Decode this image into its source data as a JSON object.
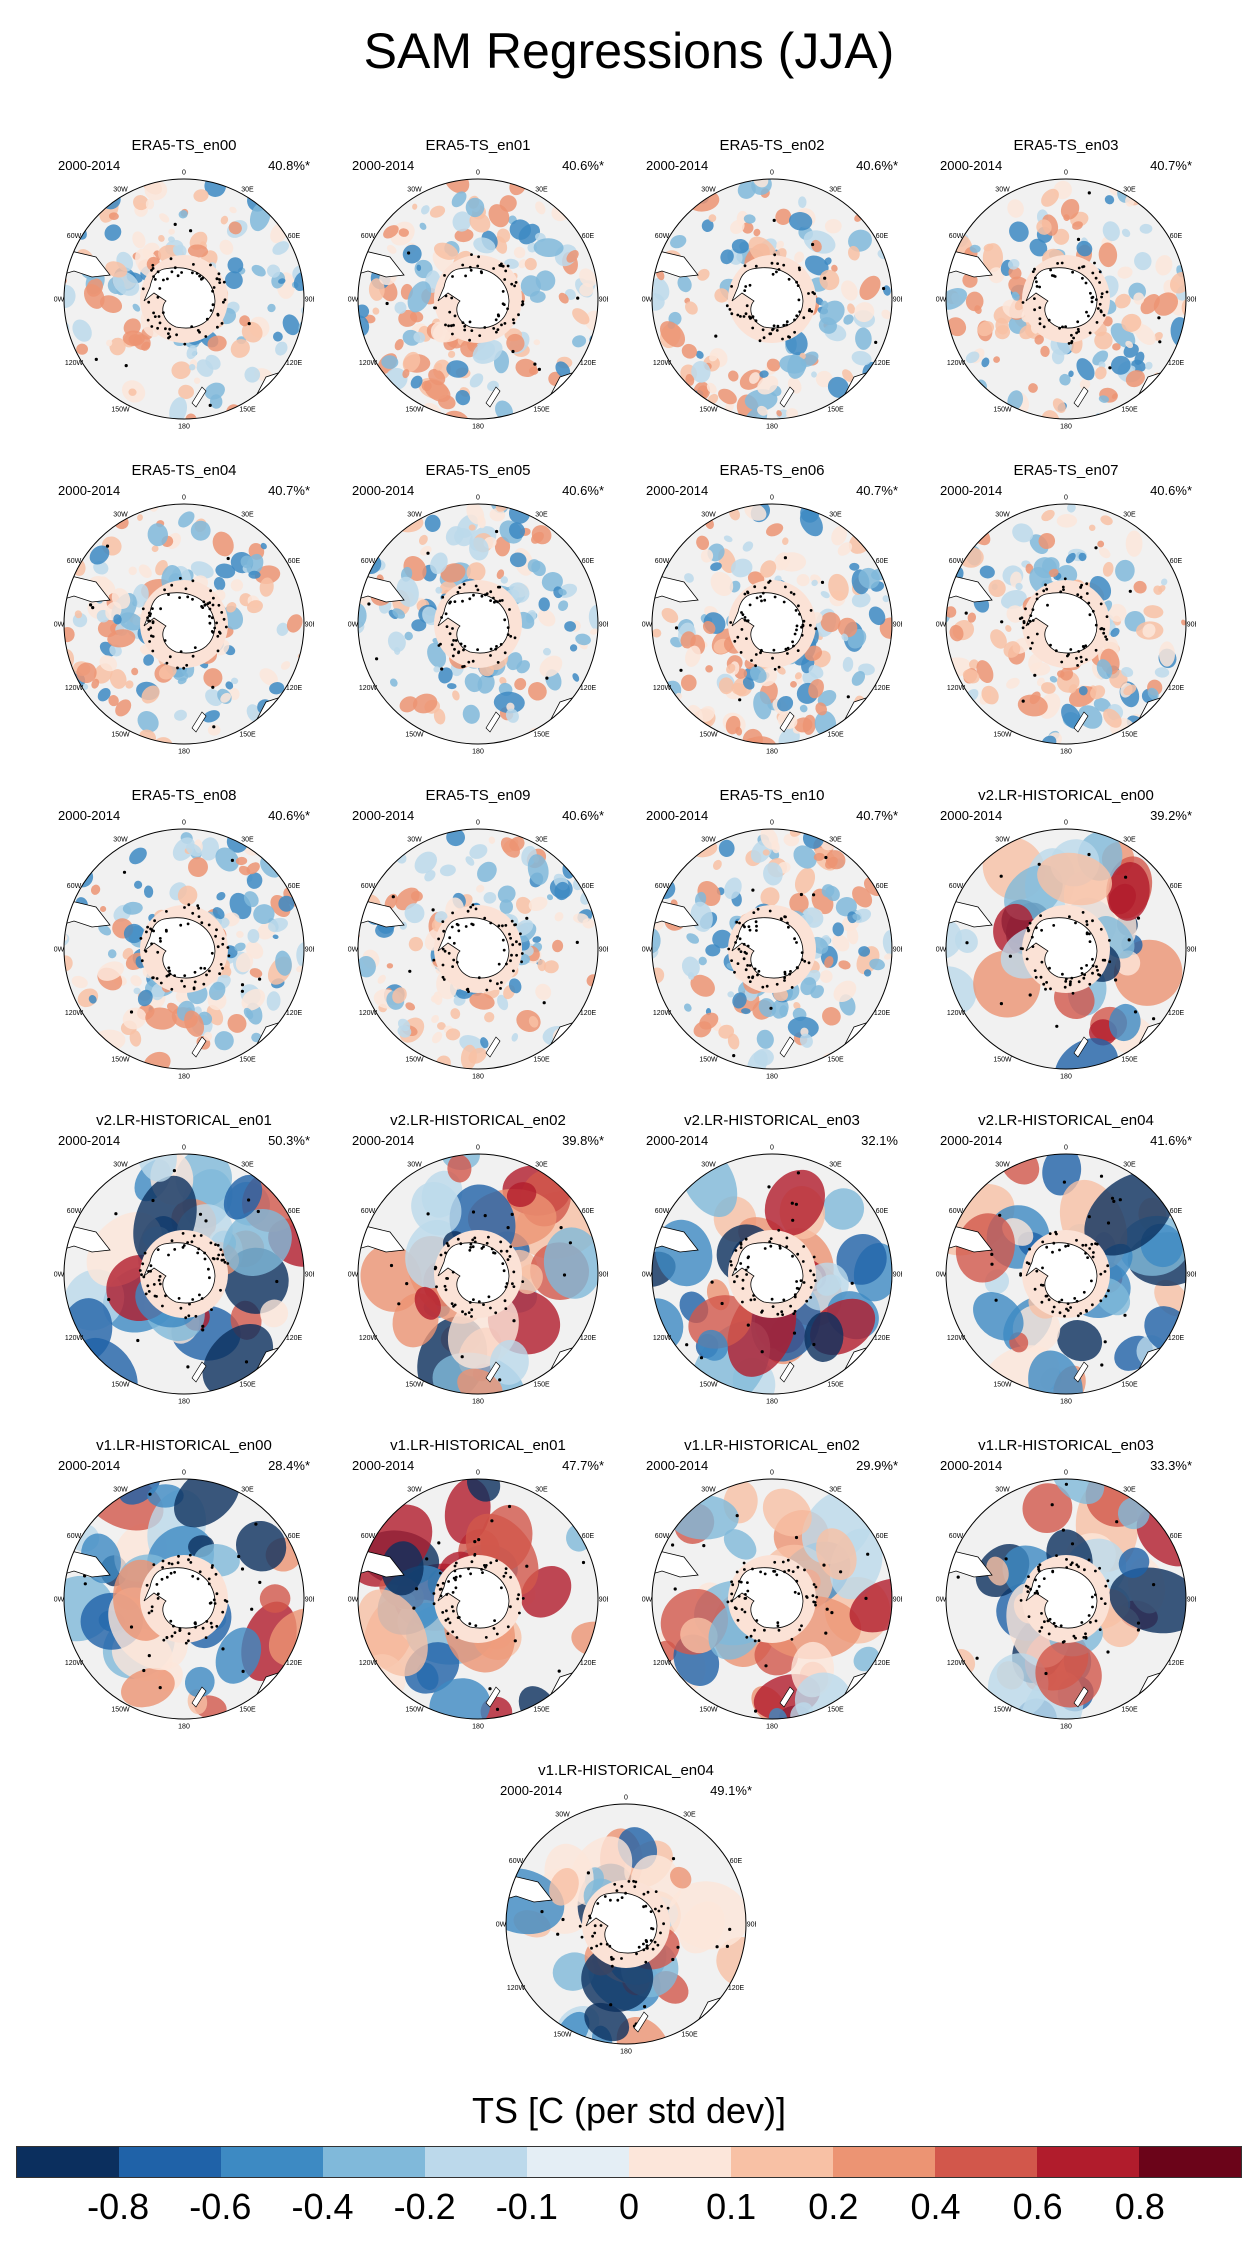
{
  "figure": {
    "title": "SAM Regressions (JJA)",
    "period": "2000-2014"
  },
  "lon_labels": [
    "0",
    "30E",
    "60E",
    "90E",
    "120E",
    "150E",
    "180",
    "150W",
    "120W",
    "90W",
    "60W",
    "30W"
  ],
  "panels": [
    {
      "title": "ERA5-TS_en00",
      "pct": "40.8%*",
      "style": "era5"
    },
    {
      "title": "ERA5-TS_en01",
      "pct": "40.6%*",
      "style": "era5"
    },
    {
      "title": "ERA5-TS_en02",
      "pct": "40.6%*",
      "style": "era5"
    },
    {
      "title": "ERA5-TS_en03",
      "pct": "40.7%*",
      "style": "era5"
    },
    {
      "title": "ERA5-TS_en04",
      "pct": "40.7%*",
      "style": "era5"
    },
    {
      "title": "ERA5-TS_en05",
      "pct": "40.6%*",
      "style": "era5"
    },
    {
      "title": "ERA5-TS_en06",
      "pct": "40.7%*",
      "style": "era5"
    },
    {
      "title": "ERA5-TS_en07",
      "pct": "40.6%*",
      "style": "era5"
    },
    {
      "title": "ERA5-TS_en08",
      "pct": "40.6%*",
      "style": "era5"
    },
    {
      "title": "ERA5-TS_en09",
      "pct": "40.6%*",
      "style": "era5"
    },
    {
      "title": "ERA5-TS_en10",
      "pct": "40.7%*",
      "style": "era5"
    },
    {
      "title": "v2.LR-HISTORICAL_en00",
      "pct": "39.2%*",
      "style": "model"
    },
    {
      "title": "v2.LR-HISTORICAL_en01",
      "pct": "50.3%*",
      "style": "model"
    },
    {
      "title": "v2.LR-HISTORICAL_en02",
      "pct": "39.8%*",
      "style": "model"
    },
    {
      "title": "v2.LR-HISTORICAL_en03",
      "pct": "32.1%",
      "style": "model"
    },
    {
      "title": "v2.LR-HISTORICAL_en04",
      "pct": "41.6%*",
      "style": "model"
    },
    {
      "title": "v1.LR-HISTORICAL_en00",
      "pct": "28.4%*",
      "style": "model"
    },
    {
      "title": "v1.LR-HISTORICAL_en01",
      "pct": "47.7%*",
      "style": "model"
    },
    {
      "title": "v1.LR-HISTORICAL_en02",
      "pct": "29.9%*",
      "style": "model"
    },
    {
      "title": "v1.LR-HISTORICAL_en03",
      "pct": "33.3%*",
      "style": "model"
    },
    {
      "title": "v1.LR-HISTORICAL_en04",
      "pct": "49.1%*",
      "style": "model"
    }
  ],
  "colorbar": {
    "title": "TS [C (per std dev)]",
    "colors": [
      "#0b2f5e",
      "#1f62a8",
      "#3d8ac3",
      "#80b9da",
      "#bcd9eb",
      "#e4eef5",
      "#fce6da",
      "#f8c1a5",
      "#ec9473",
      "#d2574b",
      "#b11c2c",
      "#6b0419"
    ],
    "labels": [
      "-0.8",
      "-0.6",
      "-0.4",
      "-0.2",
      "-0.1",
      "0",
      "0.1",
      "0.2",
      "0.4",
      "0.6",
      "0.8"
    ]
  }
}
